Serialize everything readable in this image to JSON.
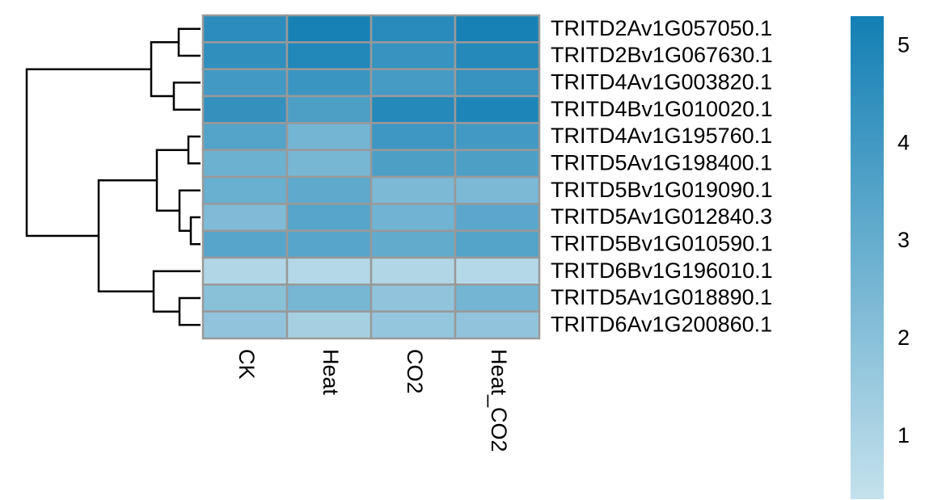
{
  "chart_data": {
    "type": "heatmap",
    "rows": [
      "TRITD2Av1G057050.1",
      "TRITD2Bv1G067630.1",
      "TRITD4Av1G003820.1",
      "TRITD4Bv1G010020.1",
      "TRITD4Av1G195760.1",
      "TRITD5Av1G198400.1",
      "TRITD5Bv1G019090.1",
      "TRITD5Av1G012840.3",
      "TRITD5Bv1G010590.1",
      "TRITD6Bv1G196010.1",
      "TRITD5Av1G018890.1",
      "TRITD6Av1G200860.1"
    ],
    "columns": [
      "CK",
      "Heat",
      "CO2",
      "Heat_CO2"
    ],
    "values": [
      [
        4.6,
        5.2,
        4.7,
        5.2
      ],
      [
        4.5,
        4.9,
        4.3,
        4.8
      ],
      [
        4.0,
        4.2,
        3.9,
        4.3
      ],
      [
        4.4,
        3.7,
        4.8,
        5.0
      ],
      [
        3.5,
        2.6,
        4.1,
        4.0
      ],
      [
        2.8,
        2.5,
        3.7,
        3.7
      ],
      [
        2.9,
        3.2,
        2.4,
        2.4
      ],
      [
        2.3,
        3.4,
        2.7,
        3.3
      ],
      [
        3.4,
        3.4,
        3.1,
        3.5
      ],
      [
        0.9,
        0.8,
        0.9,
        0.8
      ],
      [
        2.0,
        2.5,
        1.8,
        2.6
      ],
      [
        1.8,
        1.2,
        1.7,
        1.8
      ]
    ],
    "colors": [
      "#c4e1ec",
      "#137fb4"
    ],
    "colorbar_lim": [
      0.36,
      5.31
    ],
    "colorbar_ticks": [
      1,
      2,
      3,
      4,
      5
    ]
  }
}
